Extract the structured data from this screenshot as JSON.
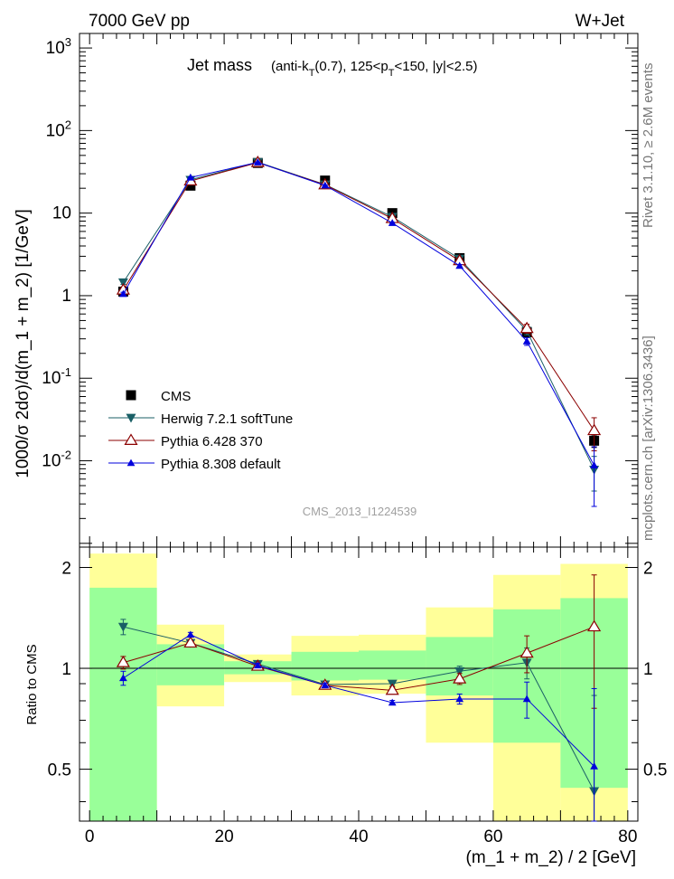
{
  "header": {
    "left": "7000 GeV pp",
    "right": "W+Jet"
  },
  "side_labels": {
    "top": "Rivet 3.1.10, ≥ 2.6M events",
    "bottom": "mcplots.cern.ch [arXiv:1306.3436]"
  },
  "watermark": "CMS_2013_I1224539",
  "chart_data": [
    {
      "type": "line",
      "title": "Jet mass",
      "title_detail": {
        "prefix": "(anti-k",
        "sub1": "T",
        "mid": "(0.7), 125<p",
        "sub2": "T",
        "suffix": "<150, |y|<2.5)"
      },
      "ylabel": "1000/σ 2dσ)/d(m_1 + m_2) [1/GeV]",
      "yscale": "log",
      "ylim": [
        0.0009,
        1500
      ],
      "xlim": [
        -1.5,
        81.5
      ],
      "y_ticks": [
        {
          "v": 0.01,
          "base": "10",
          "exp": "-2"
        },
        {
          "v": 0.1,
          "base": "10",
          "exp": "-1"
        },
        {
          "v": 1,
          "base": "1",
          "exp": ""
        },
        {
          "v": 10,
          "base": "10",
          "exp": ""
        },
        {
          "v": 100,
          "base": "10",
          "exp": "2"
        },
        {
          "v": 1000,
          "base": "10",
          "exp": "3"
        }
      ],
      "x": [
        5,
        15,
        25,
        35,
        45,
        55,
        65,
        75
      ],
      "series": [
        {
          "name": "CMS",
          "marker": "square",
          "color": "#000000",
          "values": [
            1.12,
            21.5,
            40.5,
            24.8,
            10.0,
            2.85,
            0.36,
            0.0175
          ],
          "err_lo": [
            0.06,
            0.8,
            1.2,
            0.8,
            0.4,
            0.15,
            0.03,
            0.003
          ],
          "err_hi": [
            0.06,
            0.8,
            1.2,
            0.8,
            0.4,
            0.15,
            0.03,
            0.003
          ]
        },
        {
          "name": "Herwig 7.2.1 softTune",
          "marker": "triangle-down",
          "color": "#1a5f66",
          "values": [
            1.45,
            25.3,
            41.5,
            22.2,
            9.0,
            2.8,
            0.375,
            0.0078
          ],
          "err_lo": [
            0.08,
            0.5,
            0.6,
            0.4,
            0.2,
            0.1,
            0.04,
            0.0035
          ],
          "err_hi": [
            0.08,
            0.5,
            0.6,
            0.4,
            0.2,
            0.1,
            0.04,
            0.0035
          ]
        },
        {
          "name": "Pythia 6.428 370",
          "marker": "triangle-open",
          "color": "#8b0000",
          "values": [
            1.17,
            24.5,
            41.0,
            22.0,
            8.6,
            2.65,
            0.4,
            0.0232
          ],
          "err_lo": [
            0.05,
            0.4,
            0.5,
            0.3,
            0.2,
            0.1,
            0.05,
            0.01
          ],
          "err_hi": [
            0.05,
            0.4,
            0.5,
            0.3,
            0.2,
            0.1,
            0.05,
            0.01
          ]
        },
        {
          "name": "Pythia 8.308 default",
          "marker": "triangle-up",
          "color": "#0000dd",
          "values": [
            1.05,
            27.0,
            41.2,
            21.6,
            7.6,
            2.3,
            0.28,
            0.0088
          ],
          "err_lo": [
            0.05,
            0.4,
            0.5,
            0.3,
            0.15,
            0.08,
            0.03,
            0.006
          ],
          "err_hi": [
            0.05,
            0.4,
            0.5,
            0.3,
            0.15,
            0.08,
            0.03,
            0.006
          ]
        }
      ]
    },
    {
      "type": "line",
      "ylabel": "Ratio to CMS",
      "xlabel": "(m_1 + m_2) / 2 [GeV]",
      "ylim": [
        0.35,
        2.3
      ],
      "xlim": [
        -1.5,
        81.5
      ],
      "x_ticks": [
        "0",
        "20",
        "40",
        "60",
        "80"
      ],
      "y_ticks": [
        "0.5",
        "1",
        "2"
      ],
      "bins": [
        [
          0,
          10
        ],
        [
          10,
          20
        ],
        [
          20,
          30
        ],
        [
          30,
          40
        ],
        [
          40,
          50
        ],
        [
          50,
          60
        ],
        [
          60,
          70
        ],
        [
          70,
          80
        ]
      ],
      "band_1sigma": {
        "lo": [
          0.35,
          0.89,
          0.96,
          0.92,
          0.925,
          0.83,
          0.6,
          0.44
        ],
        "hi": [
          1.74,
          1.18,
          1.05,
          1.12,
          1.13,
          1.24,
          1.5,
          1.62
        ]
      },
      "band_2sigma": {
        "lo": [
          0.35,
          0.77,
          0.91,
          0.83,
          0.84,
          0.6,
          0.35,
          0.35
        ],
        "hi": [
          2.2,
          1.35,
          1.1,
          1.25,
          1.26,
          1.52,
          1.9,
          2.05
        ]
      },
      "reference": 1,
      "x": [
        5,
        15,
        25,
        35,
        45,
        55,
        65,
        75
      ],
      "series": [
        {
          "name": "Herwig 7.2.1 softTune",
          "marker": "triangle-down",
          "color": "#1a5f66",
          "values": [
            1.33,
            1.19,
            1.03,
            0.895,
            0.9,
            0.98,
            1.04,
            0.43
          ],
          "err_lo": [
            0.07,
            0.02,
            0.015,
            0.015,
            0.015,
            0.035,
            0.11,
            0.4
          ],
          "err_hi": [
            0.07,
            0.02,
            0.015,
            0.015,
            0.015,
            0.035,
            0.11,
            0.4
          ]
        },
        {
          "name": "Pythia 6.428 370",
          "marker": "triangle-open",
          "color": "#8b0000",
          "values": [
            1.04,
            1.19,
            1.015,
            0.89,
            0.86,
            0.93,
            1.11,
            1.33
          ],
          "err_lo": [
            0.045,
            0.02,
            0.015,
            0.012,
            0.02,
            0.035,
            0.14,
            0.57
          ],
          "err_hi": [
            0.045,
            0.02,
            0.015,
            0.012,
            0.02,
            0.035,
            0.14,
            0.57
          ]
        },
        {
          "name": "Pythia 8.308 default",
          "marker": "triangle-up",
          "color": "#0000dd",
          "values": [
            0.935,
            1.26,
            1.02,
            0.89,
            0.79,
            0.81,
            0.81,
            0.51
          ],
          "err_lo": [
            0.045,
            0.02,
            0.015,
            0.012,
            0.012,
            0.028,
            0.1,
            0.36
          ],
          "err_hi": [
            0.045,
            0.02,
            0.015,
            0.012,
            0.012,
            0.028,
            0.1,
            0.36
          ]
        }
      ]
    }
  ]
}
